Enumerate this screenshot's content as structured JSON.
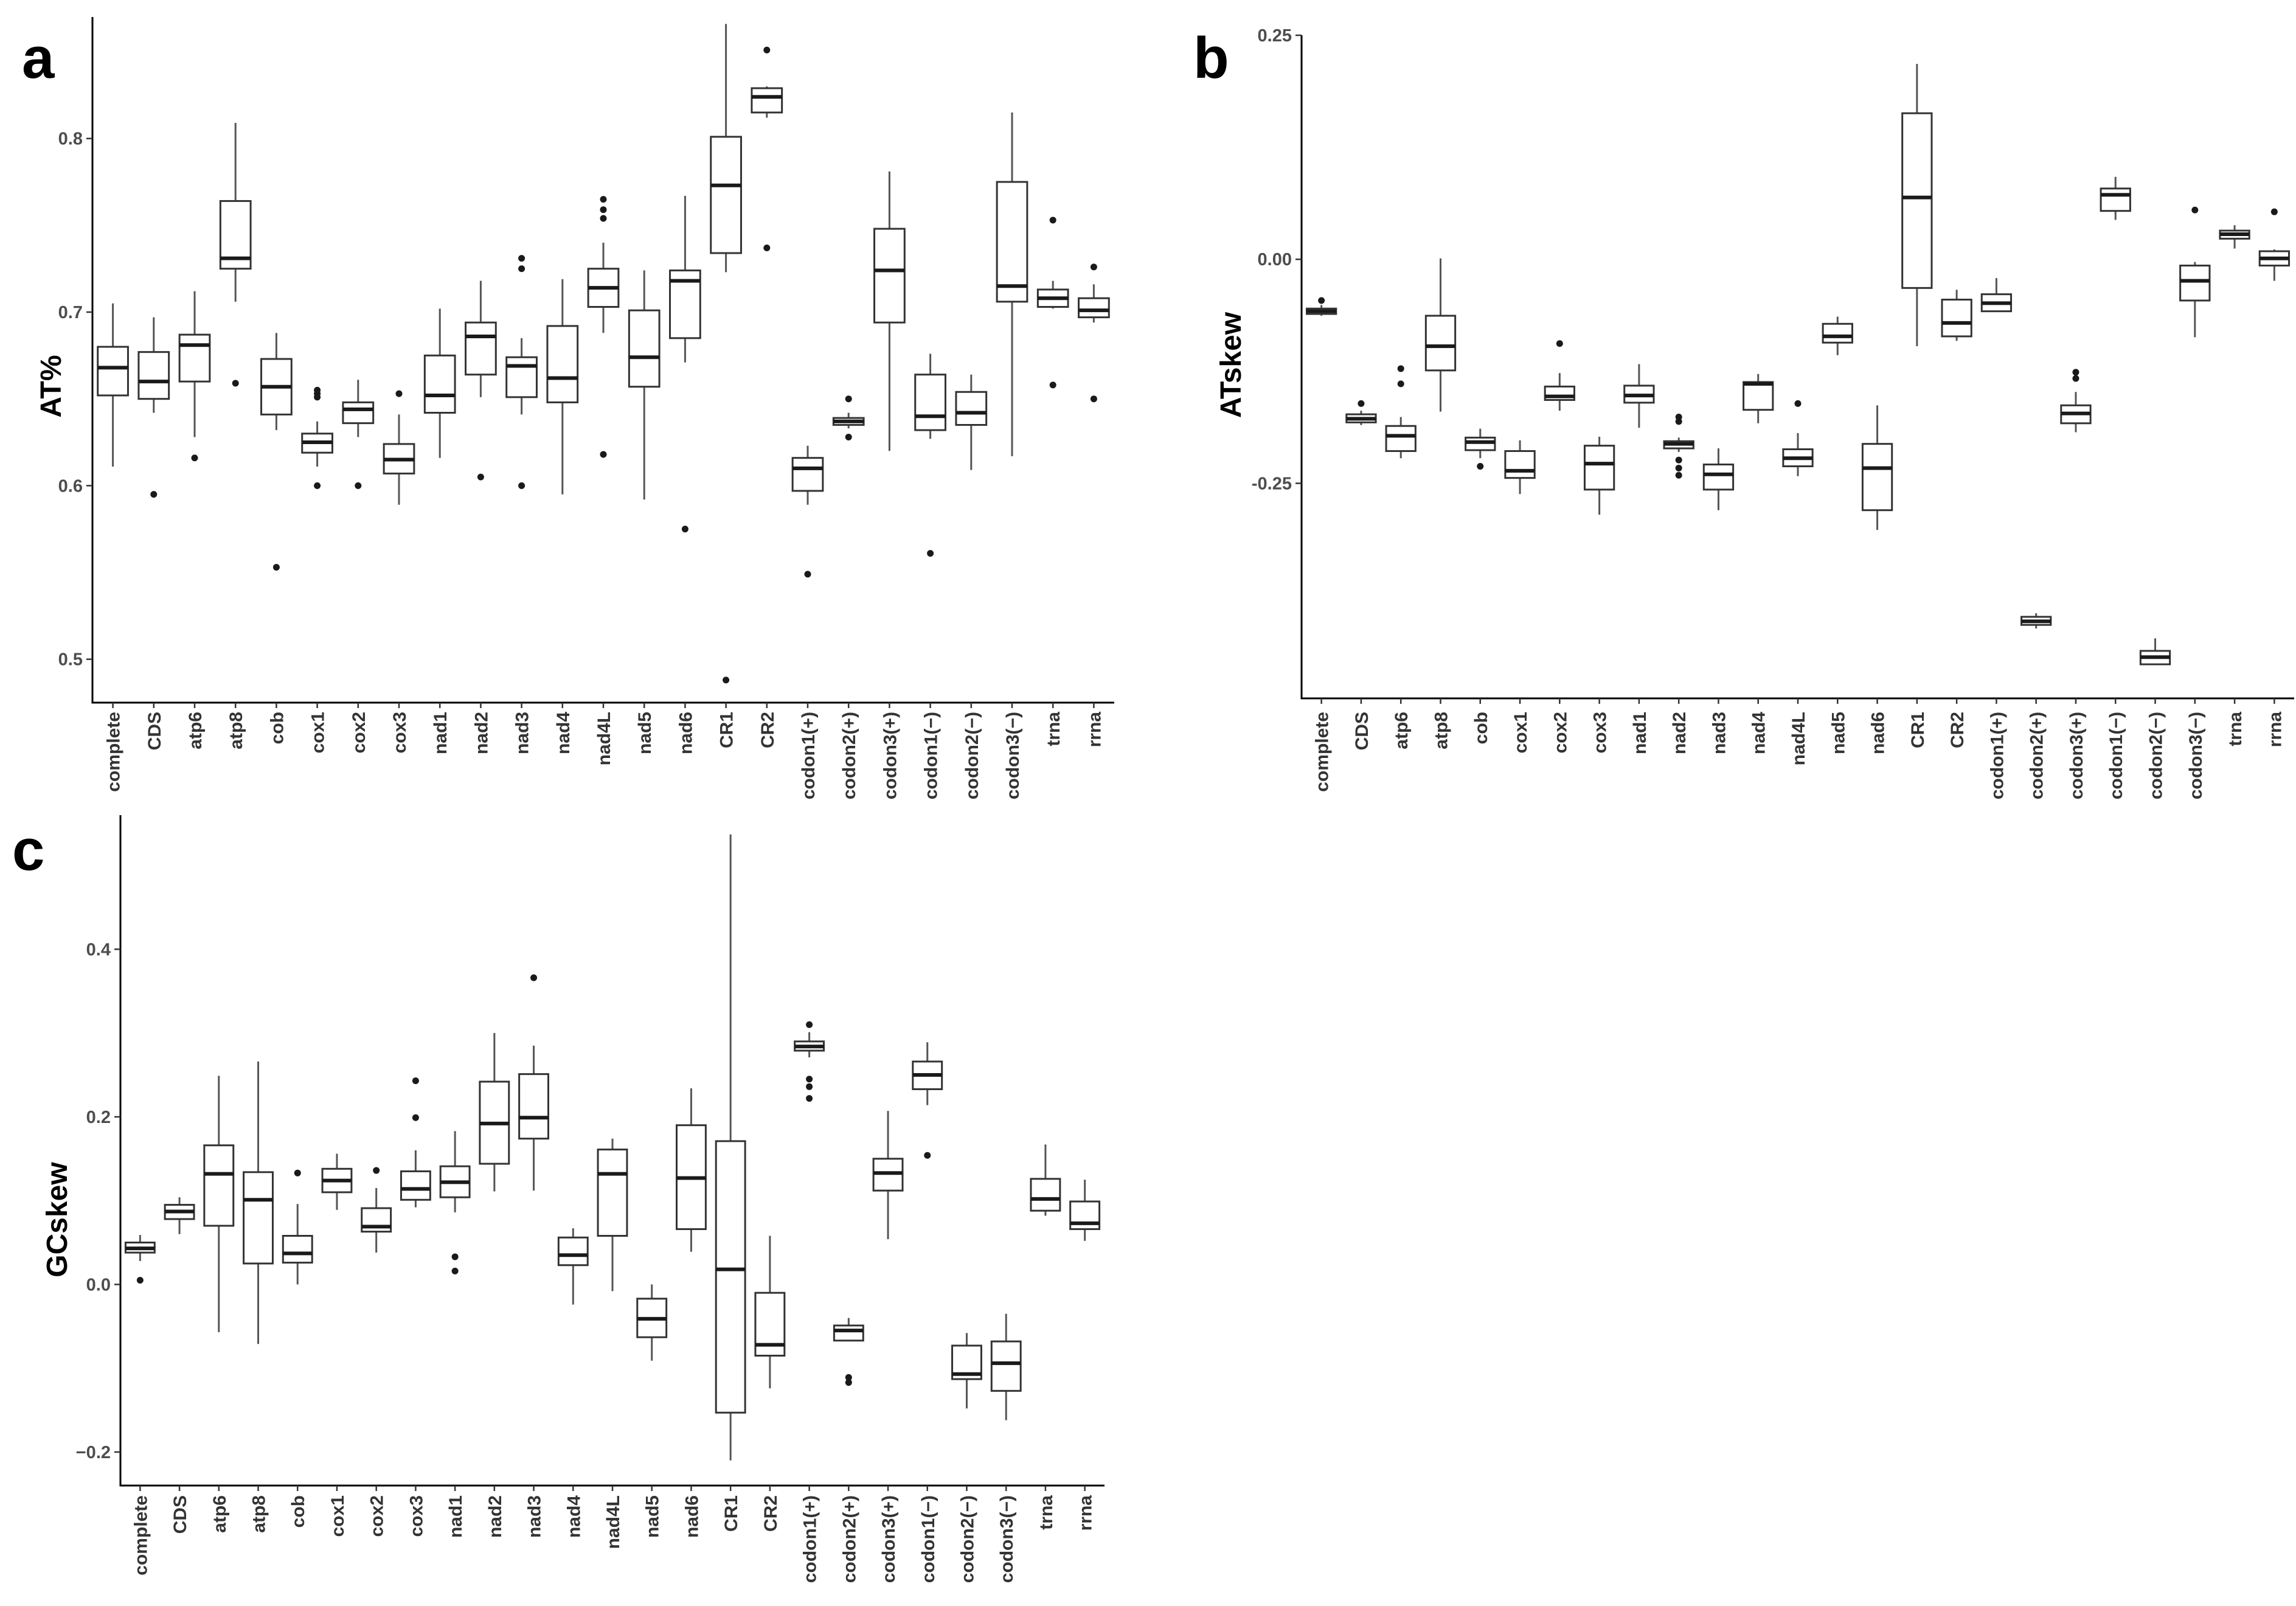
{
  "chart_data": [
    {
      "panel": "a",
      "type": "box",
      "ylabel": "AT%",
      "ylim": [
        0.475,
        0.87
      ],
      "yticks": [
        0.5,
        0.6,
        0.7,
        0.8
      ],
      "ytick_labels": [
        "0.5",
        "0.6",
        "0.7",
        "0.8"
      ],
      "grid": false,
      "categories": [
        "complete",
        "CDS",
        "atp6",
        "atp8",
        "cob",
        "cox1",
        "cox2",
        "cox3",
        "nad1",
        "nad2",
        "nad3",
        "nad4",
        "nad4L",
        "nad5",
        "nad6",
        "CR1",
        "CR2",
        "codon1(+)",
        "codon2(+)",
        "codon3(+)",
        "codon1(−)",
        "codon2(−)",
        "codon3(−)",
        "trna",
        "rrna"
      ],
      "boxes": [
        {
          "lo": 0.611,
          "q1": 0.652,
          "med": 0.668,
          "q3": 0.68,
          "hi": 0.705,
          "out": []
        },
        {
          "lo": 0.642,
          "q1": 0.65,
          "med": 0.66,
          "q3": 0.677,
          "hi": 0.697,
          "out": [
            0.595
          ]
        },
        {
          "lo": 0.628,
          "q1": 0.66,
          "med": 0.681,
          "q3": 0.687,
          "hi": 0.712,
          "out": [
            0.616
          ]
        },
        {
          "lo": 0.706,
          "q1": 0.725,
          "med": 0.731,
          "q3": 0.764,
          "hi": 0.809,
          "out": [
            0.659
          ]
        },
        {
          "lo": 0.632,
          "q1": 0.641,
          "med": 0.657,
          "q3": 0.673,
          "hi": 0.688,
          "out": [
            0.553
          ]
        },
        {
          "lo": 0.611,
          "q1": 0.619,
          "med": 0.625,
          "q3": 0.63,
          "hi": 0.637,
          "out": [
            0.6,
            0.651,
            0.653,
            0.655
          ]
        },
        {
          "lo": 0.628,
          "q1": 0.636,
          "med": 0.644,
          "q3": 0.648,
          "hi": 0.661,
          "out": [
            0.6
          ]
        },
        {
          "lo": 0.589,
          "q1": 0.607,
          "med": 0.615,
          "q3": 0.624,
          "hi": 0.641,
          "out": [
            0.653
          ]
        },
        {
          "lo": 0.616,
          "q1": 0.642,
          "med": 0.652,
          "q3": 0.675,
          "hi": 0.702,
          "out": []
        },
        {
          "lo": 0.651,
          "q1": 0.664,
          "med": 0.686,
          "q3": 0.694,
          "hi": 0.718,
          "out": [
            0.605
          ]
        },
        {
          "lo": 0.641,
          "q1": 0.651,
          "med": 0.669,
          "q3": 0.674,
          "hi": 0.685,
          "out": [
            0.6,
            0.725,
            0.731
          ]
        },
        {
          "lo": 0.595,
          "q1": 0.648,
          "med": 0.662,
          "q3": 0.692,
          "hi": 0.719,
          "out": []
        },
        {
          "lo": 0.688,
          "q1": 0.703,
          "med": 0.714,
          "q3": 0.725,
          "hi": 0.74,
          "out": [
            0.618,
            0.754,
            0.759,
            0.765
          ]
        },
        {
          "lo": 0.592,
          "q1": 0.657,
          "med": 0.674,
          "q3": 0.701,
          "hi": 0.724,
          "out": []
        },
        {
          "lo": 0.671,
          "q1": 0.685,
          "med": 0.718,
          "q3": 0.724,
          "hi": 0.767,
          "out": [
            0.575
          ]
        },
        {
          "lo": 0.723,
          "q1": 0.734,
          "med": 0.773,
          "q3": 0.801,
          "hi": 0.866,
          "out": [
            0.488
          ]
        },
        {
          "lo": 0.812,
          "q1": 0.815,
          "med": 0.824,
          "q3": 0.829,
          "hi": 0.83,
          "out": [
            0.737,
            0.851
          ]
        },
        {
          "lo": 0.589,
          "q1": 0.597,
          "med": 0.61,
          "q3": 0.616,
          "hi": 0.623,
          "out": [
            0.549
          ]
        },
        {
          "lo": 0.633,
          "q1": 0.635,
          "med": 0.637,
          "q3": 0.639,
          "hi": 0.642,
          "out": [
            0.628,
            0.65
          ]
        },
        {
          "lo": 0.62,
          "q1": 0.694,
          "med": 0.724,
          "q3": 0.748,
          "hi": 0.781,
          "out": []
        },
        {
          "lo": 0.627,
          "q1": 0.632,
          "med": 0.64,
          "q3": 0.664,
          "hi": 0.676,
          "out": [
            0.561
          ]
        },
        {
          "lo": 0.609,
          "q1": 0.635,
          "med": 0.642,
          "q3": 0.654,
          "hi": 0.664,
          "out": []
        },
        {
          "lo": 0.617,
          "q1": 0.706,
          "med": 0.715,
          "q3": 0.775,
          "hi": 0.815,
          "out": []
        },
        {
          "lo": 0.702,
          "q1": 0.703,
          "med": 0.708,
          "q3": 0.713,
          "hi": 0.718,
          "out": [
            0.658,
            0.753
          ]
        },
        {
          "lo": 0.694,
          "q1": 0.697,
          "med": 0.701,
          "q3": 0.708,
          "hi": 0.716,
          "out": [
            0.65,
            0.726
          ]
        }
      ]
    },
    {
      "panel": "b",
      "type": "box",
      "ylabel": "ATskew",
      "ylim": [
        -0.49,
        0.25
      ],
      "yticks": [
        -0.25,
        0.0,
        0.25
      ],
      "ytick_labels": [
        "-0.25",
        "0.00",
        "0.25"
      ],
      "grid": false,
      "categories": [
        "complete",
        "CDS",
        "atp6",
        "atp8",
        "cob",
        "cox1",
        "cox2",
        "cox3",
        "nad1",
        "nad2",
        "nad3",
        "nad4",
        "nad4L",
        "nad5",
        "nad6",
        "CR1",
        "CR2",
        "codon1(+)",
        "codon2(+)",
        "codon3(+)",
        "codon1(−)",
        "codon2(−)",
        "codon3(−)",
        "trna",
        "rrna"
      ],
      "boxes": [
        {
          "lo": -0.063,
          "q1": -0.061,
          "med": -0.058,
          "q3": -0.055,
          "hi": -0.051,
          "out": [
            -0.046
          ]
        },
        {
          "lo": -0.185,
          "q1": -0.182,
          "med": -0.178,
          "q3": -0.173,
          "hi": -0.169,
          "out": [
            -0.161
          ]
        },
        {
          "lo": -0.222,
          "q1": -0.214,
          "med": -0.197,
          "q3": -0.186,
          "hi": -0.176,
          "out": [
            -0.122,
            -0.139
          ]
        },
        {
          "lo": -0.17,
          "q1": -0.124,
          "med": -0.097,
          "q3": -0.063,
          "hi": 0.001,
          "out": []
        },
        {
          "lo": -0.222,
          "q1": -0.213,
          "med": -0.204,
          "q3": -0.199,
          "hi": -0.189,
          "out": [
            -0.231
          ]
        },
        {
          "lo": -0.262,
          "q1": -0.244,
          "med": -0.236,
          "q3": -0.214,
          "hi": -0.202,
          "out": []
        },
        {
          "lo": -0.169,
          "q1": -0.157,
          "med": -0.153,
          "q3": -0.142,
          "hi": -0.127,
          "out": [
            -0.094
          ]
        },
        {
          "lo": -0.285,
          "q1": -0.257,
          "med": -0.228,
          "q3": -0.208,
          "hi": -0.198,
          "out": []
        },
        {
          "lo": -0.188,
          "q1": -0.16,
          "med": -0.152,
          "q3": -0.141,
          "hi": -0.117,
          "out": []
        },
        {
          "lo": -0.215,
          "q1": -0.211,
          "med": -0.206,
          "q3": -0.203,
          "hi": -0.199,
          "out": [
            -0.176,
            -0.181,
            -0.224,
            -0.233,
            -0.241
          ]
        },
        {
          "lo": -0.28,
          "q1": -0.257,
          "med": -0.24,
          "q3": -0.229,
          "hi": -0.211,
          "out": []
        },
        {
          "lo": -0.183,
          "q1": -0.168,
          "med": -0.139,
          "q3": -0.137,
          "hi": -0.128,
          "out": []
        },
        {
          "lo": -0.242,
          "q1": -0.231,
          "med": -0.222,
          "q3": -0.212,
          "hi": -0.194,
          "out": [
            -0.161
          ]
        },
        {
          "lo": -0.107,
          "q1": -0.093,
          "med": -0.086,
          "q3": -0.072,
          "hi": -0.064,
          "out": []
        },
        {
          "lo": -0.302,
          "q1": -0.28,
          "med": -0.233,
          "q3": -0.206,
          "hi": -0.163,
          "out": []
        },
        {
          "lo": -0.097,
          "q1": -0.032,
          "med": 0.069,
          "q3": 0.163,
          "hi": 0.218,
          "out": []
        },
        {
          "lo": -0.091,
          "q1": -0.086,
          "med": -0.071,
          "q3": -0.045,
          "hi": -0.034,
          "out": []
        },
        {
          "lo": -0.058,
          "q1": -0.058,
          "med": -0.049,
          "q3": -0.039,
          "hi": -0.021,
          "out": []
        },
        {
          "lo": -0.412,
          "q1": -0.408,
          "med": -0.404,
          "q3": -0.399,
          "hi": -0.395,
          "out": []
        },
        {
          "lo": -0.193,
          "q1": -0.183,
          "med": -0.172,
          "q3": -0.163,
          "hi": -0.148,
          "out": [
            -0.126,
            -0.133
          ]
        },
        {
          "lo": 0.044,
          "q1": 0.054,
          "med": 0.072,
          "q3": 0.079,
          "hi": 0.092,
          "out": []
        },
        {
          "lo": -0.452,
          "q1": -0.452,
          "med": -0.444,
          "q3": -0.437,
          "hi": -0.423,
          "out": []
        },
        {
          "lo": -0.087,
          "q1": -0.046,
          "med": -0.024,
          "q3": -0.007,
          "hi": -0.003,
          "out": [
            0.055
          ]
        },
        {
          "lo": 0.012,
          "q1": 0.023,
          "med": 0.028,
          "q3": 0.032,
          "hi": 0.038,
          "out": []
        },
        {
          "lo": -0.024,
          "q1": -0.007,
          "med": 0.001,
          "q3": 0.009,
          "hi": 0.011,
          "out": [
            0.053
          ]
        }
      ]
    },
    {
      "panel": "c",
      "type": "box",
      "ylabel": "GCskew",
      "ylim": [
        -0.24,
        0.56
      ],
      "yticks": [
        -0.2,
        0.0,
        0.2,
        0.4
      ],
      "ytick_labels": [
        "−0.2",
        "0.0",
        "0.2",
        "0.4"
      ],
      "grid": false,
      "categories": [
        "complete",
        "CDS",
        "atp6",
        "atp8",
        "cob",
        "cox1",
        "cox2",
        "cox3",
        "nad1",
        "nad2",
        "nad3",
        "nad4",
        "nad4L",
        "nad5",
        "nad6",
        "CR1",
        "CR2",
        "codon1(+)",
        "codon2(+)",
        "codon3(+)",
        "codon1(−)",
        "codon2(−)",
        "codon3(−)",
        "trna",
        "rrna"
      ],
      "boxes": [
        {
          "lo": 0.028,
          "q1": 0.038,
          "med": 0.043,
          "q3": 0.05,
          "hi": 0.059,
          "out": [
            0.005
          ]
        },
        {
          "lo": 0.06,
          "q1": 0.078,
          "med": 0.087,
          "q3": 0.095,
          "hi": 0.104,
          "out": []
        },
        {
          "lo": -0.057,
          "q1": 0.07,
          "med": 0.132,
          "q3": 0.166,
          "hi": 0.249,
          "out": []
        },
        {
          "lo": -0.071,
          "q1": 0.025,
          "med": 0.101,
          "q3": 0.134,
          "hi": 0.266,
          "out": []
        },
        {
          "lo": 0.0,
          "q1": 0.026,
          "med": 0.037,
          "q3": 0.058,
          "hi": 0.096,
          "out": [
            0.133
          ]
        },
        {
          "lo": 0.089,
          "q1": 0.11,
          "med": 0.124,
          "q3": 0.138,
          "hi": 0.156,
          "out": []
        },
        {
          "lo": 0.038,
          "q1": 0.063,
          "med": 0.069,
          "q3": 0.091,
          "hi": 0.115,
          "out": [
            0.136
          ]
        },
        {
          "lo": 0.092,
          "q1": 0.101,
          "med": 0.114,
          "q3": 0.135,
          "hi": 0.16,
          "out": [
            0.199,
            0.243
          ]
        },
        {
          "lo": 0.086,
          "q1": 0.104,
          "med": 0.122,
          "q3": 0.141,
          "hi": 0.183,
          "out": [
            0.016,
            0.033
          ]
        },
        {
          "lo": 0.111,
          "q1": 0.144,
          "med": 0.192,
          "q3": 0.242,
          "hi": 0.3,
          "out": []
        },
        {
          "lo": 0.112,
          "q1": 0.174,
          "med": 0.199,
          "q3": 0.251,
          "hi": 0.285,
          "out": [
            0.366
          ]
        },
        {
          "lo": -0.024,
          "q1": 0.023,
          "med": 0.035,
          "q3": 0.056,
          "hi": 0.067,
          "out": []
        },
        {
          "lo": -0.008,
          "q1": 0.058,
          "med": 0.132,
          "q3": 0.161,
          "hi": 0.174,
          "out": []
        },
        {
          "lo": -0.091,
          "q1": -0.063,
          "med": -0.041,
          "q3": -0.017,
          "hi": 0.0,
          "out": []
        },
        {
          "lo": 0.039,
          "q1": 0.066,
          "med": 0.127,
          "q3": 0.19,
          "hi": 0.234,
          "out": []
        },
        {
          "lo": -0.21,
          "q1": -0.153,
          "med": 0.018,
          "q3": 0.171,
          "hi": 0.537,
          "out": []
        },
        {
          "lo": -0.124,
          "q1": -0.085,
          "med": -0.072,
          "q3": -0.01,
          "hi": 0.058,
          "out": []
        },
        {
          "lo": 0.271,
          "q1": 0.279,
          "med": 0.284,
          "q3": 0.29,
          "hi": 0.301,
          "out": [
            0.222,
            0.236,
            0.245,
            0.31
          ]
        },
        {
          "lo": -0.067,
          "q1": -0.067,
          "med": -0.055,
          "q3": -0.049,
          "hi": -0.04,
          "out": [
            -0.111,
            -0.117
          ]
        },
        {
          "lo": 0.054,
          "q1": 0.112,
          "med": 0.133,
          "q3": 0.15,
          "hi": 0.207,
          "out": []
        },
        {
          "lo": 0.214,
          "q1": 0.233,
          "med": 0.25,
          "q3": 0.266,
          "hi": 0.289,
          "out": [
            0.154
          ]
        },
        {
          "lo": -0.148,
          "q1": -0.113,
          "med": -0.107,
          "q3": -0.073,
          "hi": -0.058,
          "out": []
        },
        {
          "lo": -0.162,
          "q1": -0.127,
          "med": -0.094,
          "q3": -0.068,
          "hi": -0.035,
          "out": []
        },
        {
          "lo": 0.082,
          "q1": 0.088,
          "med": 0.102,
          "q3": 0.126,
          "hi": 0.167,
          "out": []
        },
        {
          "lo": 0.052,
          "q1": 0.066,
          "med": 0.073,
          "q3": 0.099,
          "hi": 0.125,
          "out": []
        }
      ]
    }
  ]
}
